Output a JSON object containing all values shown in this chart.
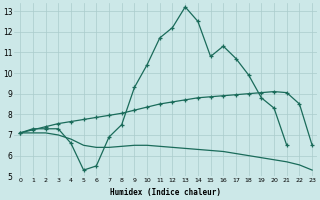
{
  "xlabel": "Humidex (Indice chaleur)",
  "background_color": "#cce8e8",
  "grid_color": "#aacccc",
  "line_color": "#1a6b5a",
  "xlim": [
    -0.5,
    23.4
  ],
  "ylim": [
    5,
    13.4
  ],
  "xticks": [
    0,
    1,
    2,
    3,
    4,
    5,
    6,
    7,
    8,
    9,
    10,
    11,
    12,
    13,
    14,
    15,
    16,
    17,
    18,
    19,
    20,
    21,
    22,
    23
  ],
  "yticks": [
    5,
    6,
    7,
    8,
    9,
    10,
    11,
    12,
    13
  ],
  "line1_x": [
    0,
    1,
    2,
    3,
    4,
    5,
    6,
    7,
    8,
    9,
    10,
    11,
    12,
    13,
    14,
    15,
    16,
    17,
    18,
    19,
    20,
    21
  ],
  "line1_y": [
    7.1,
    7.3,
    7.3,
    7.3,
    6.6,
    5.3,
    5.5,
    6.9,
    7.5,
    9.3,
    10.4,
    11.7,
    12.2,
    13.2,
    12.5,
    10.8,
    11.3,
    10.7,
    9.9,
    8.8,
    8.3,
    6.5
  ],
  "line2_x": [
    0,
    1,
    2,
    3,
    4,
    5,
    6,
    7,
    8,
    9,
    10,
    11,
    12,
    13,
    14,
    15,
    16,
    17,
    18,
    19,
    20,
    21,
    22,
    23
  ],
  "line2_y": [
    7.1,
    7.25,
    7.4,
    7.55,
    7.65,
    7.75,
    7.85,
    7.95,
    8.05,
    8.2,
    8.35,
    8.5,
    8.6,
    8.7,
    8.8,
    8.85,
    8.9,
    8.95,
    9.0,
    9.05,
    9.1,
    9.05,
    8.5,
    6.5
  ],
  "line3_x": [
    0,
    1,
    2,
    3,
    4,
    5,
    6,
    7,
    8,
    9,
    10,
    11,
    12,
    13,
    14,
    15,
    16,
    17,
    18,
    19,
    20,
    21,
    22,
    23
  ],
  "line3_y": [
    7.1,
    7.1,
    7.1,
    7.0,
    6.8,
    6.5,
    6.4,
    6.4,
    6.45,
    6.5,
    6.5,
    6.45,
    6.4,
    6.35,
    6.3,
    6.25,
    6.2,
    6.1,
    6.0,
    5.9,
    5.8,
    5.7,
    5.55,
    5.3
  ]
}
